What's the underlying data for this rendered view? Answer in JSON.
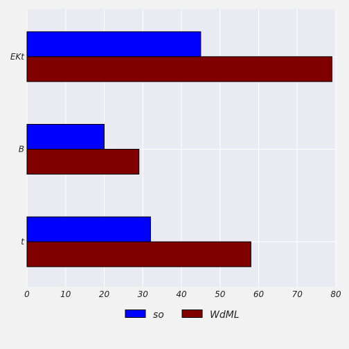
{
  "chart_data": {
    "type": "bar",
    "orientation": "horizontal",
    "categories": [
      "EKt",
      "B",
      "t"
    ],
    "series": [
      {
        "name": "so",
        "values": [
          45,
          20,
          32
        ],
        "color": "#0000ff"
      },
      {
        "name": "WdML",
        "values": [
          79,
          29,
          58
        ],
        "color": "#800000"
      }
    ],
    "xlim": [
      0,
      80
    ],
    "xticks": [
      "0",
      "10",
      "20",
      "30",
      "40",
      "50",
      "60",
      "70",
      "80"
    ],
    "title": "",
    "xlabel": "",
    "ylabel": "",
    "grid": true,
    "legend_position": "bottom-center",
    "colors": {
      "plot_background": "#eaeaf2",
      "page_background": "#f2f2f2",
      "grid": "#ffffff",
      "bar_edge": "#000000"
    }
  }
}
